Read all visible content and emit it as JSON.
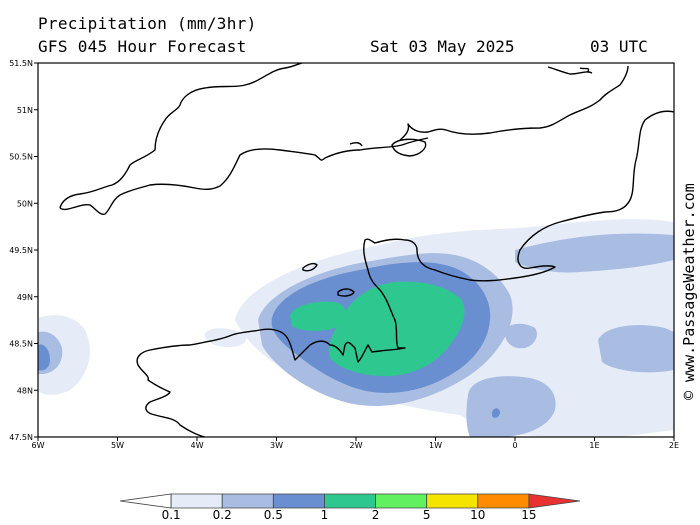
{
  "header": {
    "title": "Precipitation (mm/3hr)",
    "subtitle": "GFS 045 Hour Forecast",
    "date": "Sat 03 May 2025",
    "time": "03 UTC"
  },
  "map": {
    "lat_ticks": [
      "51.5N",
      "51N",
      "50.5N",
      "50N",
      "49.5N",
      "49N",
      "48.5N",
      "48N",
      "47.5N"
    ],
    "lon_ticks": [
      "6W",
      "5W",
      "4W",
      "3W",
      "2W",
      "1W",
      "0",
      "1E",
      "2E"
    ],
    "coastline_color": "#000000"
  },
  "legend": {
    "thresholds": [
      "0.1",
      "0.2",
      "0.5",
      "1",
      "2",
      "5",
      "10",
      "15"
    ],
    "colors": [
      "#ffffff",
      "#e6ecf7",
      "#a9bde3",
      "#6a8fd1",
      "#2dc78f",
      "#60f060",
      "#f4e400",
      "#ff8c00",
      "#e83232"
    ]
  },
  "watermark": "© www.PassageWeather.com"
}
